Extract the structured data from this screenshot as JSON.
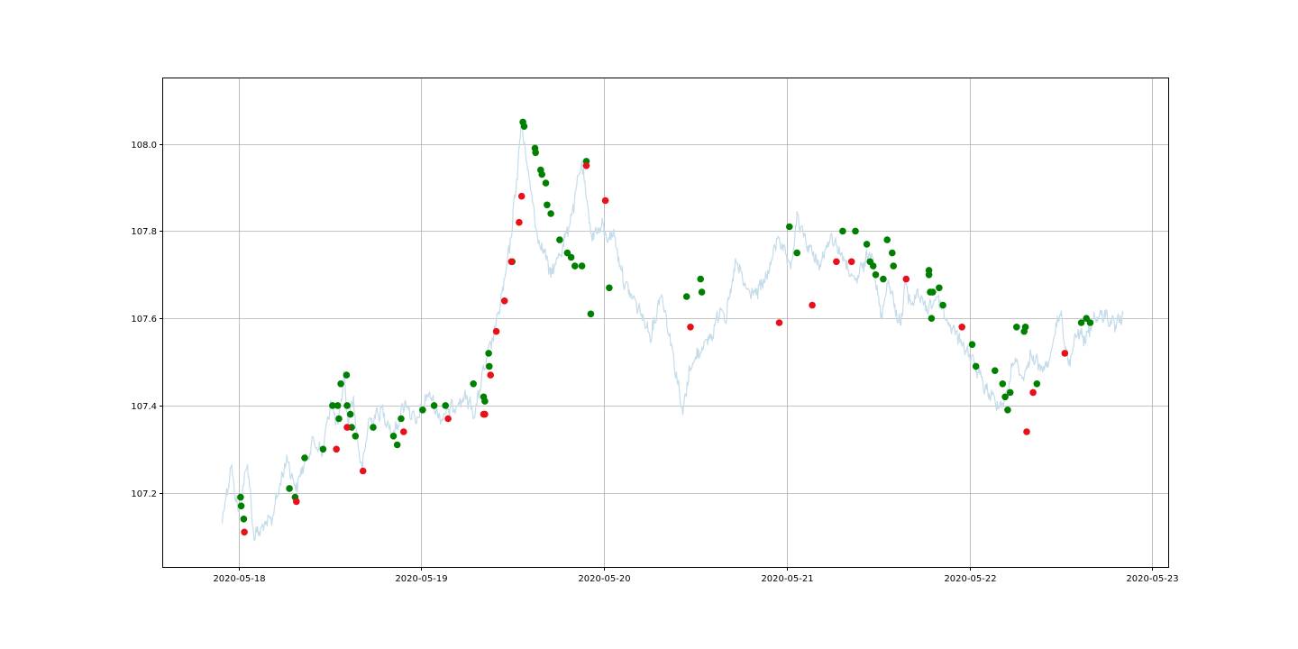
{
  "chart_data": {
    "type": "line",
    "title": "",
    "xlabel": "",
    "ylabel": "",
    "grid": true,
    "xlim": [
      "2020-05-17T14:05",
      "2020-05-23T02:05"
    ],
    "ylim": [
      107.03,
      108.15
    ],
    "x_ticks": [
      "2020-05-18",
      "2020-05-19",
      "2020-05-20",
      "2020-05-21",
      "2020-05-22",
      "2020-05-23"
    ],
    "y_ticks": [
      107.2,
      107.4,
      107.6,
      107.8,
      108.0
    ],
    "colors": {
      "price_line": "#c5dcea",
      "green_marker": "#008000",
      "red_marker": "#e8101a"
    },
    "series": [
      {
        "kind": "line",
        "x": [
          "2020-05-17T21:50",
          "2020-05-17T23:00",
          "2020-05-18T00:00",
          "2020-05-18T01:10",
          "2020-05-18T02:00",
          "2020-05-18T03:10",
          "2020-05-18T04:20",
          "2020-05-18T05:10",
          "2020-05-18T06:20",
          "2020-05-18T07:30",
          "2020-05-18T08:40",
          "2020-05-18T09:50",
          "2020-05-18T11:00",
          "2020-05-18T12:05",
          "2020-05-18T13:05",
          "2020-05-18T13:50",
          "2020-05-18T14:20",
          "2020-05-18T15:05",
          "2020-05-18T15:30",
          "2020-05-18T16:15",
          "2020-05-18T17:00",
          "2020-05-18T18:50",
          "2020-05-18T20:20",
          "2020-05-18T21:50",
          "2020-05-18T23:15",
          "2020-05-19T01:00",
          "2020-05-19T02:25",
          "2020-05-19T04:20",
          "2020-05-19T05:50",
          "2020-05-19T07:05",
          "2020-05-19T07:45",
          "2020-05-19T08:50",
          "2020-05-19T09:45",
          "2020-05-19T10:40",
          "2020-05-19T11:35",
          "2020-05-19T12:25",
          "2020-05-19T13:10",
          "2020-05-19T13:40",
          "2020-05-19T14:20",
          "2020-05-19T15:20",
          "2020-05-19T16:00",
          "2020-05-19T17:00",
          "2020-05-19T18:40",
          "2020-05-19T19:55",
          "2020-05-19T21:00",
          "2020-05-19T22:20",
          "2020-05-19T23:45",
          "2020-05-20T00:30",
          "2020-05-20T01:10",
          "2020-05-20T02:40",
          "2020-05-20T04:20",
          "2020-05-20T06:10",
          "2020-05-20T07:30",
          "2020-05-20T08:50",
          "2020-05-20T10:20",
          "2020-05-20T11:10",
          "2020-05-20T12:40",
          "2020-05-20T14:10",
          "2020-05-20T15:20",
          "2020-05-20T16:00",
          "2020-05-20T17:20",
          "2020-05-20T18:50",
          "2020-05-20T20:10",
          "2020-05-20T21:30",
          "2020-05-20T22:50",
          "2020-05-21T00:30",
          "2020-05-21T01:20",
          "2020-05-21T02:40",
          "2020-05-21T04:20",
          "2020-05-21T05:50",
          "2020-05-21T07:20",
          "2020-05-21T08:50",
          "2020-05-21T10:00",
          "2020-05-21T11:10",
          "2020-05-21T12:20",
          "2020-05-21T13:20",
          "2020-05-21T14:40",
          "2020-05-21T15:10",
          "2020-05-21T15:30",
          "2020-05-21T16:20",
          "2020-05-21T17:10",
          "2020-05-21T18:20",
          "2020-05-21T19:50",
          "2020-05-21T21:10",
          "2020-05-21T22:50",
          "2020-05-22T00:30",
          "2020-05-22T02:00",
          "2020-05-22T03:50",
          "2020-05-22T04:50",
          "2020-05-22T05:50",
          "2020-05-22T07:00",
          "2020-05-22T08:10",
          "2020-05-22T09:30",
          "2020-05-22T10:40",
          "2020-05-22T11:50",
          "2020-05-22T13:00",
          "2020-05-22T14:10",
          "2020-05-22T15:10",
          "2020-05-22T16:20",
          "2020-05-22T17:40",
          "2020-05-22T19:10",
          "2020-05-22T20:10"
        ],
        "y": [
          107.14,
          107.26,
          107.15,
          107.27,
          107.1,
          107.12,
          107.14,
          107.2,
          107.28,
          107.21,
          107.27,
          107.32,
          107.29,
          107.41,
          107.35,
          107.47,
          107.36,
          107.42,
          107.33,
          107.25,
          107.36,
          107.39,
          107.33,
          107.41,
          107.36,
          107.43,
          107.37,
          107.4,
          107.42,
          107.38,
          107.45,
          107.52,
          107.58,
          107.66,
          107.76,
          107.9,
          108.05,
          107.98,
          107.9,
          107.78,
          107.76,
          107.7,
          107.77,
          107.85,
          107.96,
          107.79,
          107.81,
          107.78,
          107.8,
          107.68,
          107.63,
          107.56,
          107.66,
          107.54,
          107.38,
          107.48,
          107.53,
          107.56,
          107.63,
          107.6,
          107.73,
          107.66,
          107.66,
          107.7,
          107.79,
          107.71,
          107.83,
          107.77,
          107.72,
          107.79,
          107.74,
          107.68,
          107.72,
          107.76,
          107.6,
          107.69,
          107.59,
          107.61,
          107.68,
          107.63,
          107.66,
          107.62,
          107.65,
          107.59,
          107.55,
          107.5,
          107.44,
          107.4,
          107.42,
          107.51,
          107.46,
          107.52,
          107.48,
          107.51,
          107.62,
          107.49,
          107.57,
          107.55,
          107.6,
          107.61,
          107.58,
          107.61
        ]
      },
      {
        "kind": "markers",
        "color": "green",
        "x": [
          "2020-05-18T00:15",
          "2020-05-18T00:20",
          "2020-05-18T00:40",
          "2020-05-18T06:40",
          "2020-05-18T07:25",
          "2020-05-18T08:40",
          "2020-05-18T11:05",
          "2020-05-18T12:20",
          "2020-05-18T13:00",
          "2020-05-18T13:10",
          "2020-05-18T13:25",
          "2020-05-18T14:10",
          "2020-05-18T14:15",
          "2020-05-18T14:40",
          "2020-05-18T14:50",
          "2020-05-18T15:20",
          "2020-05-18T17:40",
          "2020-05-18T20:20",
          "2020-05-18T20:50",
          "2020-05-18T21:20",
          "2020-05-19T00:10",
          "2020-05-19T01:40",
          "2020-05-19T03:10",
          "2020-05-19T06:50",
          "2020-05-19T08:10",
          "2020-05-19T08:20",
          "2020-05-19T08:50",
          "2020-05-19T08:55",
          "2020-05-19T11:55",
          "2020-05-19T13:20",
          "2020-05-19T13:30",
          "2020-05-19T14:55",
          "2020-05-19T15:00",
          "2020-05-19T15:40",
          "2020-05-19T15:50",
          "2020-05-19T16:20",
          "2020-05-19T16:30",
          "2020-05-19T17:00",
          "2020-05-19T18:10",
          "2020-05-19T19:10",
          "2020-05-19T19:40",
          "2020-05-19T20:10",
          "2020-05-19T21:05",
          "2020-05-19T21:40",
          "2020-05-19T22:15",
          "2020-05-20T00:40",
          "2020-05-20T10:50",
          "2020-05-20T12:40",
          "2020-05-20T12:50",
          "2020-05-21T00:20",
          "2020-05-21T01:20",
          "2020-05-21T07:20",
          "2020-05-21T09:00",
          "2020-05-21T10:30",
          "2020-05-21T10:55",
          "2020-05-21T11:20",
          "2020-05-21T11:40",
          "2020-05-21T12:40",
          "2020-05-21T13:10",
          "2020-05-21T13:50",
          "2020-05-21T14:00",
          "2020-05-21T18:40",
          "2020-05-21T18:40",
          "2020-05-21T18:50",
          "2020-05-21T19:00",
          "2020-05-21T19:10",
          "2020-05-21T20:00",
          "2020-05-21T20:30",
          "2020-05-22T00:20",
          "2020-05-22T00:50",
          "2020-05-22T03:20",
          "2020-05-22T04:20",
          "2020-05-22T04:40",
          "2020-05-22T05:00",
          "2020-05-22T05:20",
          "2020-05-22T06:10",
          "2020-05-22T07:10",
          "2020-05-22T07:20",
          "2020-05-22T08:50",
          "2020-05-22T14:40",
          "2020-05-22T15:20",
          "2020-05-22T15:50"
        ],
        "y": [
          107.19,
          107.17,
          107.14,
          107.21,
          107.19,
          107.28,
          107.3,
          107.4,
          107.4,
          107.37,
          107.45,
          107.47,
          107.4,
          107.38,
          107.35,
          107.33,
          107.35,
          107.33,
          107.31,
          107.37,
          107.39,
          107.4,
          107.4,
          107.45,
          107.42,
          107.41,
          107.52,
          107.49,
          107.73,
          108.05,
          108.04,
          107.99,
          107.98,
          107.94,
          107.93,
          107.91,
          107.86,
          107.84,
          107.78,
          107.75,
          107.74,
          107.72,
          107.72,
          107.96,
          107.61,
          107.67,
          107.65,
          107.69,
          107.66,
          107.81,
          107.75,
          107.8,
          107.8,
          107.77,
          107.73,
          107.72,
          107.7,
          107.69,
          107.78,
          107.75,
          107.72,
          107.71,
          107.7,
          107.66,
          107.6,
          107.66,
          107.67,
          107.63,
          107.54,
          107.49,
          107.48,
          107.45,
          107.42,
          107.39,
          107.43,
          107.58,
          107.57,
          107.58,
          107.45,
          107.59,
          107.6,
          107.59
        ]
      },
      {
        "kind": "markers",
        "color": "red",
        "x": [
          "2020-05-18T00:45",
          "2020-05-18T07:35",
          "2020-05-18T12:50",
          "2020-05-18T14:15",
          "2020-05-18T16:20",
          "2020-05-18T21:40",
          "2020-05-19T03:30",
          "2020-05-19T08:10",
          "2020-05-19T08:20",
          "2020-05-19T09:05",
          "2020-05-19T09:50",
          "2020-05-19T10:55",
          "2020-05-19T11:50",
          "2020-05-19T12:50",
          "2020-05-19T13:10",
          "2020-05-19T21:40",
          "2020-05-20T00:10",
          "2020-05-20T11:20",
          "2020-05-20T23:00",
          "2020-05-21T03:20",
          "2020-05-21T06:30",
          "2020-05-21T08:30",
          "2020-05-21T15:40",
          "2020-05-21T23:00",
          "2020-05-22T07:30",
          "2020-05-22T08:20",
          "2020-05-22T12:30"
        ],
        "y": [
          107.11,
          107.18,
          107.3,
          107.35,
          107.25,
          107.34,
          107.37,
          107.38,
          107.38,
          107.47,
          107.57,
          107.64,
          107.73,
          107.82,
          107.88,
          107.95,
          107.87,
          107.58,
          107.59,
          107.63,
          107.73,
          107.73,
          107.69,
          107.58,
          107.34,
          107.43,
          107.52
        ]
      }
    ]
  }
}
